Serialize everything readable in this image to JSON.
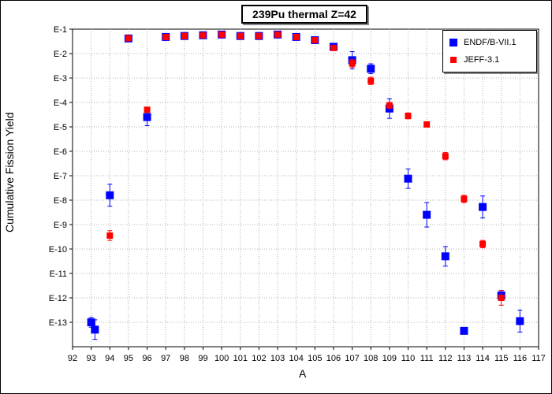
{
  "chart_data": {
    "type": "scatter",
    "title": "239Pu thermal Z=42",
    "xlabel": "A",
    "ylabel": "Cumulative Fission Yield",
    "xlim": [
      92,
      117
    ],
    "ylim_exponent": [
      -13.8,
      -1
    ],
    "y_scale": "log",
    "x_ticks": [
      92,
      93,
      94,
      95,
      96,
      97,
      98,
      99,
      100,
      101,
      102,
      103,
      104,
      105,
      106,
      107,
      108,
      109,
      110,
      111,
      112,
      113,
      114,
      115,
      116,
      117
    ],
    "y_ticks": [
      "E-1",
      "E-2",
      "E-3",
      "E-4",
      "E-5",
      "E-6",
      "E-7",
      "E-8",
      "E-9",
      "E-10",
      "E-11",
      "E-12",
      "E-13"
    ],
    "y_tick_exponents": [
      -1,
      -2,
      -3,
      -4,
      -5,
      -6,
      -7,
      -8,
      -9,
      -10,
      -11,
      -12,
      -13
    ],
    "grid": true,
    "legend_position": "top-right",
    "series": [
      {
        "name": "ENDF/B-VII.1",
        "color": "#0000ff",
        "marker": "square",
        "points": [
          {
            "x": 93,
            "log10y": -13.0,
            "err": 0.2
          },
          {
            "x": 93.2,
            "log10y": -13.3,
            "err": 0.4
          },
          {
            "x": 94,
            "log10y": -7.8,
            "err": 0.45
          },
          {
            "x": 95,
            "log10y": -1.38,
            "err": 0
          },
          {
            "x": 96,
            "log10y": -4.6,
            "err": 0.35
          },
          {
            "x": 97,
            "log10y": -1.32,
            "err": 0
          },
          {
            "x": 98,
            "log10y": -1.28,
            "err": 0
          },
          {
            "x": 99,
            "log10y": -1.25,
            "err": 0
          },
          {
            "x": 100,
            "log10y": -1.22,
            "err": 0
          },
          {
            "x": 101,
            "log10y": -1.28,
            "err": 0
          },
          {
            "x": 102,
            "log10y": -1.28,
            "err": 0
          },
          {
            "x": 103,
            "log10y": -1.22,
            "err": 0
          },
          {
            "x": 104,
            "log10y": -1.32,
            "err": 0
          },
          {
            "x": 105,
            "log10y": -1.45,
            "err": 0
          },
          {
            "x": 106,
            "log10y": -1.72,
            "err": 0.08
          },
          {
            "x": 107,
            "log10y": -2.27,
            "err": 0.35
          },
          {
            "x": 108,
            "log10y": -2.62,
            "err": 0.2
          },
          {
            "x": 109,
            "log10y": -4.25,
            "err": 0.4
          },
          {
            "x": 110,
            "log10y": -7.12,
            "err": 0.4
          },
          {
            "x": 111,
            "log10y": -8.6,
            "err": 0.5
          },
          {
            "x": 112,
            "log10y": -10.3,
            "err": 0.4
          },
          {
            "x": 113,
            "log10y": -13.35,
            "err": 0
          },
          {
            "x": 114,
            "log10y": -8.28,
            "err": 0.45
          },
          {
            "x": 115,
            "log10y": -11.9,
            "err": 0.2
          },
          {
            "x": 116,
            "log10y": -12.95,
            "err": 0.45
          }
        ]
      },
      {
        "name": "JEFF-3.1",
        "color": "#ff0000",
        "marker": "square",
        "points": [
          {
            "x": 94,
            "log10y": -9.45,
            "err": 0.2
          },
          {
            "x": 95,
            "log10y": -1.37,
            "err": 0
          },
          {
            "x": 96,
            "log10y": -4.3,
            "err": 0.1
          },
          {
            "x": 97,
            "log10y": -1.32,
            "err": 0
          },
          {
            "x": 98,
            "log10y": -1.28,
            "err": 0
          },
          {
            "x": 99,
            "log10y": -1.25,
            "err": 0
          },
          {
            "x": 100,
            "log10y": -1.22,
            "err": 0
          },
          {
            "x": 101,
            "log10y": -1.28,
            "err": 0
          },
          {
            "x": 102,
            "log10y": -1.28,
            "err": 0
          },
          {
            "x": 103,
            "log10y": -1.22,
            "err": 0
          },
          {
            "x": 104,
            "log10y": -1.32,
            "err": 0
          },
          {
            "x": 105,
            "log10y": -1.45,
            "err": 0
          },
          {
            "x": 106,
            "log10y": -1.77,
            "err": 0.06
          },
          {
            "x": 107,
            "log10y": -2.4,
            "err": 0.15
          },
          {
            "x": 108,
            "log10y": -3.12,
            "err": 0.15
          },
          {
            "x": 109,
            "log10y": -4.12,
            "err": 0.12
          },
          {
            "x": 110,
            "log10y": -4.55,
            "err": 0.12
          },
          {
            "x": 111,
            "log10y": -4.9,
            "err": 0.1
          },
          {
            "x": 112,
            "log10y": -6.2,
            "err": 0.15
          },
          {
            "x": 113,
            "log10y": -7.95,
            "err": 0.15
          },
          {
            "x": 114,
            "log10y": -9.8,
            "err": 0.15
          },
          {
            "x": 115,
            "log10y": -12.0,
            "err": 0.3
          }
        ]
      }
    ]
  }
}
